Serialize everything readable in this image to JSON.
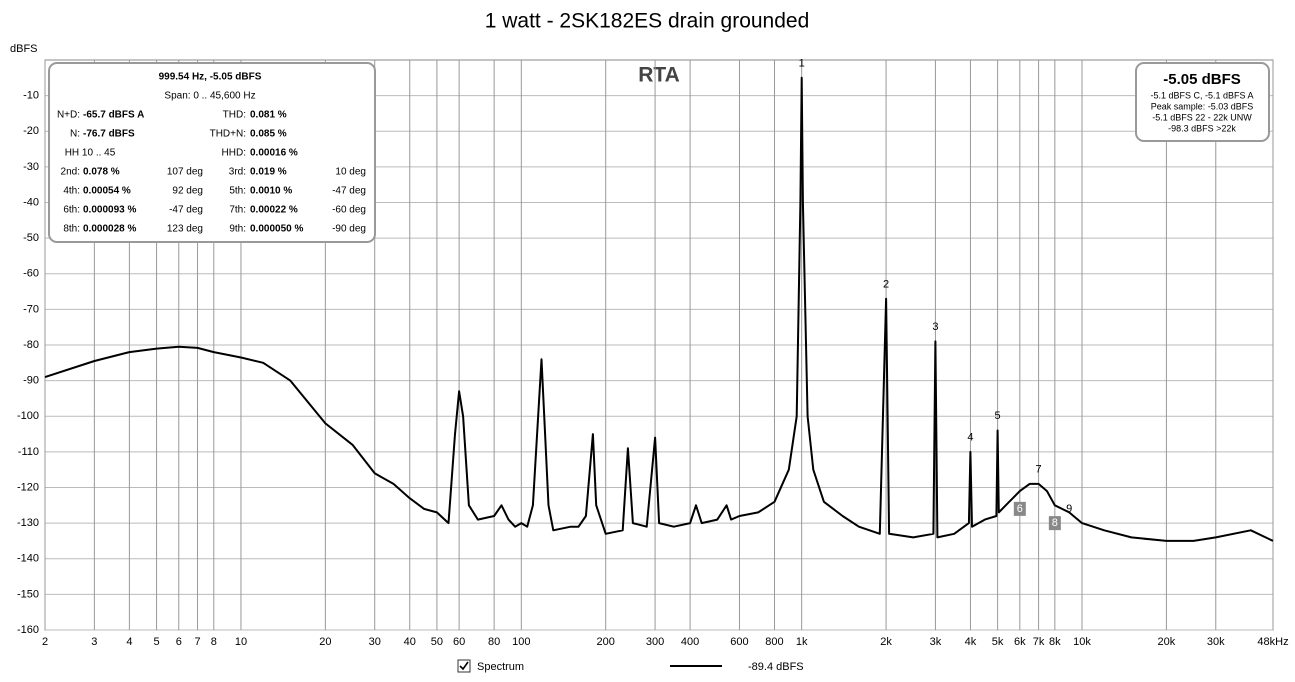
{
  "chart_data": {
    "type": "line",
    "title": "1 watt - 2SK182ES drain grounded",
    "annotation": "RTA",
    "y_label": "dBFS",
    "log_x": true,
    "grid": true,
    "xlim": [
      2,
      48000
    ],
    "ylim": [
      -160,
      0
    ],
    "xticks": [
      2,
      3,
      4,
      5,
      6,
      7,
      8,
      10,
      20,
      30,
      40,
      50,
      60,
      80,
      100,
      200,
      300,
      400,
      600,
      800,
      {
        "value": 1000,
        "label": "1k"
      },
      {
        "value": 2000,
        "label": "2k"
      },
      {
        "value": 3000,
        "label": "3k"
      },
      {
        "value": 4000,
        "label": "4k"
      },
      {
        "value": 5000,
        "label": "5k"
      },
      {
        "value": 6000,
        "label": "6k"
      },
      {
        "value": 7000,
        "label": "7k"
      },
      {
        "value": 8000,
        "label": "8k"
      },
      {
        "value": 10000,
        "label": "10k"
      },
      {
        "value": 20000,
        "label": "20k"
      },
      {
        "value": 30000,
        "label": "30k"
      },
      {
        "value": 48000,
        "label": "48kHz"
      }
    ],
    "yticks": [
      -10,
      -20,
      -30,
      -40,
      -50,
      -60,
      -70,
      -80,
      -90,
      -100,
      -110,
      -120,
      -130,
      -140,
      -150,
      -160
    ],
    "x": [
      2,
      3,
      4,
      5,
      6,
      7,
      8,
      10,
      12,
      15,
      20,
      25,
      30,
      35,
      40,
      45,
      50,
      55,
      58,
      60,
      62,
      65,
      70,
      80,
      85,
      90,
      95,
      100,
      105,
      110,
      118,
      125,
      130,
      150,
      160,
      170,
      180,
      185,
      200,
      230,
      240,
      250,
      280,
      300,
      310,
      350,
      400,
      420,
      440,
      500,
      540,
      560,
      600,
      700,
      800,
      900,
      960,
      990,
      1000,
      1010,
      1050,
      1100,
      1200,
      1400,
      1600,
      1900,
      2000,
      2050,
      2500,
      2950,
      3000,
      3050,
      3500,
      3950,
      4000,
      4050,
      4500,
      4950,
      5000,
      5050,
      5500,
      6000,
      6500,
      7000,
      7500,
      8000,
      9000,
      10000,
      12000,
      15000,
      20000,
      25000,
      30000,
      40000,
      48000
    ],
    "series": [
      {
        "name": "Spectrum",
        "color": "#000000",
        "values": [
          -89,
          -84.5,
          -82,
          -81,
          -80.5,
          -80.8,
          -82,
          -83.5,
          -85,
          -90,
          -102,
          -108,
          -116,
          -119,
          -123,
          -126,
          -127,
          -130,
          -105,
          -93,
          -100,
          -125,
          -129,
          -128,
          -125,
          -129,
          -131,
          -130,
          -131,
          -125,
          -84,
          -125,
          -132,
          -131,
          -131,
          -128,
          -105,
          -125,
          -133,
          -132,
          -109,
          -130,
          -131,
          -106,
          -130,
          -131,
          -130,
          -125,
          -130,
          -129,
          -125,
          -129,
          -128,
          -127,
          -124,
          -115,
          -100,
          -40,
          -5,
          -40,
          -100,
          -115,
          -124,
          -128,
          -131,
          -133,
          -67,
          -133,
          -134,
          -133,
          -79,
          -134,
          -133,
          -130,
          -110,
          -131,
          -129,
          -128,
          -104,
          -127,
          -124,
          -121,
          -119,
          -119,
          -121,
          -125,
          -127,
          -130,
          -132,
          -134,
          -135,
          -135,
          -134,
          -132,
          -135
        ]
      }
    ],
    "harmonics": [
      {
        "label": "1",
        "x": 1000,
        "y": -1
      },
      {
        "label": "2",
        "x": 2000,
        "y": -63
      },
      {
        "label": "3",
        "x": 3000,
        "y": -75
      },
      {
        "label": "4",
        "x": 4000,
        "y": -106
      },
      {
        "label": "5",
        "x": 5000,
        "y": -100
      },
      {
        "label": "6",
        "x": 6000,
        "y": -126,
        "boxed": true
      },
      {
        "label": "7",
        "x": 7000,
        "y": -115
      },
      {
        "label": "8",
        "x": 8000,
        "y": -130,
        "boxed": true
      },
      {
        "label": "9",
        "x": 9000,
        "y": -126
      }
    ]
  },
  "info_box": {
    "lines": [
      "999.54 Hz, -5.05 dBFS",
      "Span: 0 .. 45,600 Hz"
    ],
    "rows": [
      {
        "l1": "N+D:",
        "v1": "-65.7 dBFS A",
        "l2": "THD:",
        "v2": "0.081 %"
      },
      {
        "l1": "N:",
        "v1": "-76.7 dBFS",
        "l2": "THD+N:",
        "v2": "0.085 %"
      },
      {
        "c1": "HH 10 .. 45",
        "l2": "HHD:",
        "v2": "0.00016 %"
      },
      {
        "l1": "2nd:",
        "v1": "0.078 %",
        "d1": "107 deg",
        "l2": "3rd:",
        "v2": "0.019 %",
        "d2": "10 deg"
      },
      {
        "l1": "4th:",
        "v1": "0.00054 %",
        "d1": "92 deg",
        "l2": "5th:",
        "v2": "0.0010 %",
        "d2": "-47 deg"
      },
      {
        "l1": "6th:",
        "v1": "0.000093 %",
        "d1": "-47 deg",
        "l2": "7th:",
        "v2": "0.00022 %",
        "d2": "-60 deg"
      },
      {
        "l1": "8th:",
        "v1": "0.000028 %",
        "d1": "123 deg",
        "l2": "9th:",
        "v2": "0.000050 %",
        "d2": "-90 deg"
      }
    ]
  },
  "level_box": {
    "main": "-5.05 dBFS",
    "lines": [
      "-5.1 dBFS C, -5.1 dBFS A",
      "Peak sample: -5.03 dBFS",
      "-5.1 dBFS 22 - 22k UNW",
      "-98.3 dBFS >22k"
    ]
  },
  "legend": {
    "value": "-89.4 dBFS"
  }
}
